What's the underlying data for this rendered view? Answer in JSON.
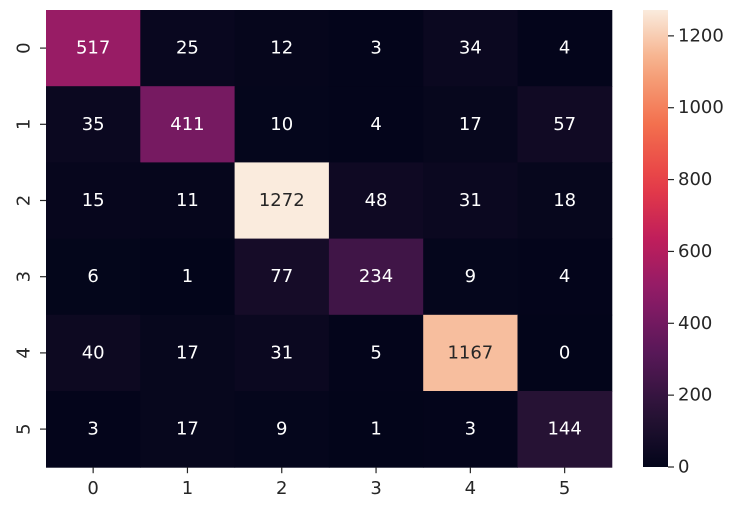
{
  "chart_data": {
    "type": "heatmap",
    "x_categories": [
      "0",
      "1",
      "2",
      "3",
      "4",
      "5"
    ],
    "y_categories": [
      "0",
      "1",
      "2",
      "3",
      "4",
      "5"
    ],
    "values": [
      [
        517,
        25,
        12,
        3,
        34,
        4
      ],
      [
        35,
        411,
        10,
        4,
        17,
        57
      ],
      [
        15,
        11,
        1272,
        48,
        31,
        18
      ],
      [
        6,
        1,
        77,
        234,
        9,
        4
      ],
      [
        40,
        17,
        31,
        5,
        1167,
        0
      ],
      [
        3,
        17,
        9,
        1,
        3,
        144
      ]
    ],
    "colorbar": {
      "min": 0,
      "max": 1272,
      "ticks": [
        0,
        200,
        400,
        600,
        800,
        1000,
        1200
      ],
      "tick_labels": [
        "0",
        "200",
        "400",
        "600",
        "800",
        "1000",
        "1200"
      ],
      "colormap": "rocket"
    },
    "title": "",
    "xlabel": "",
    "ylabel": ""
  }
}
